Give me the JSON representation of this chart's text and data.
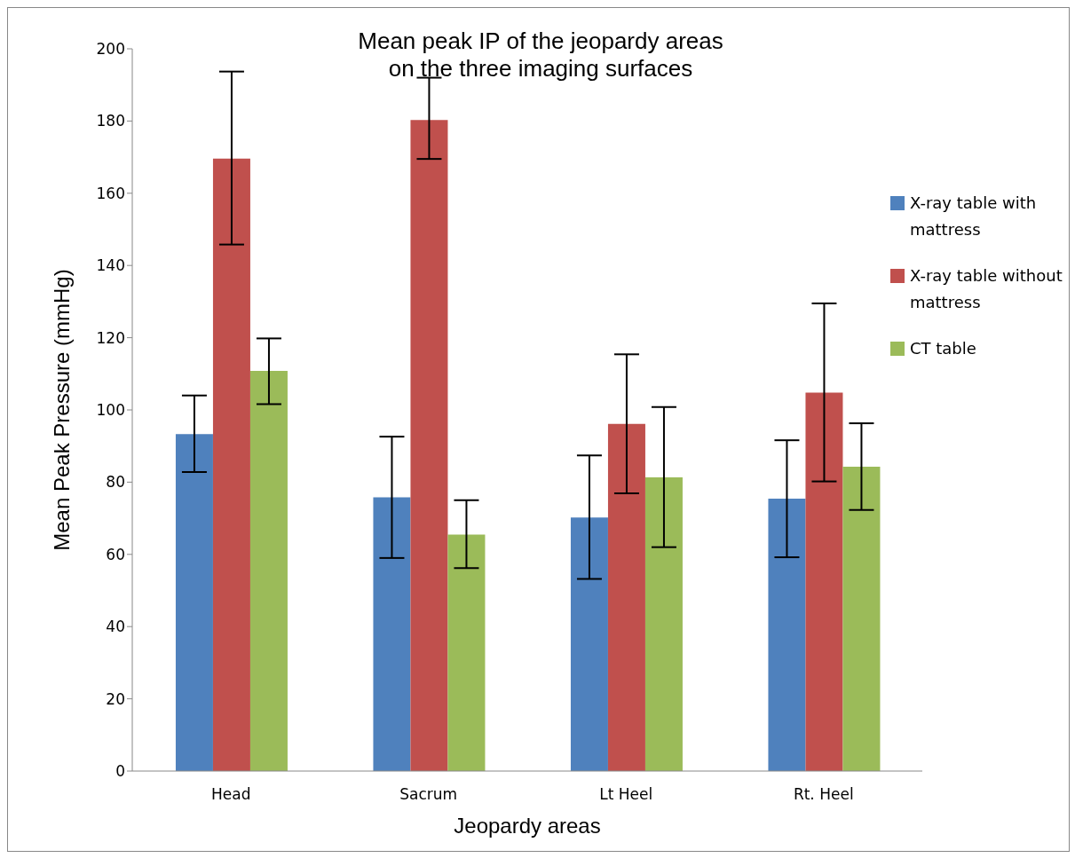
{
  "chart_data": {
    "type": "bar",
    "title": "Mean peak IP of the jeopardy areas\non the three imaging surfaces",
    "xlabel": "Jeopardy areas",
    "ylabel": "Mean Peak Pressure (mmHg)",
    "categories": [
      "Head",
      "Sacrum",
      "Lt Heel",
      "Rt. Heel"
    ],
    "series": [
      {
        "name": "X-ray table with mattress",
        "color": "#4f81bd",
        "values": [
          93.3,
          75.8,
          70.2,
          75.4
        ],
        "errors": [
          [
            82.8,
            104
          ],
          [
            59,
            92.6
          ],
          [
            53.2,
            87.4
          ],
          [
            59.2,
            91.6
          ]
        ]
      },
      {
        "name": "X-ray table without mattress",
        "color": "#c0504d",
        "values": [
          169.6,
          180.3,
          96.1,
          104.8
        ],
        "errors": [
          [
            145.8,
            193.7
          ],
          [
            169.5,
            192
          ],
          [
            76.9,
            115.4
          ],
          [
            80.2,
            129.5
          ]
        ]
      },
      {
        "name": "CT table",
        "color": "#9bbb59",
        "values": [
          110.8,
          65.5,
          81.3,
          84.3
        ],
        "errors": [
          [
            101.6,
            119.8
          ],
          [
            56.2,
            75
          ],
          [
            62,
            100.8
          ],
          [
            72.3,
            96.3
          ]
        ]
      }
    ],
    "ylim": [
      0,
      200
    ],
    "yticks": [
      0,
      20,
      40,
      60,
      80,
      100,
      120,
      140,
      160,
      180,
      200
    ],
    "legend": "right"
  }
}
